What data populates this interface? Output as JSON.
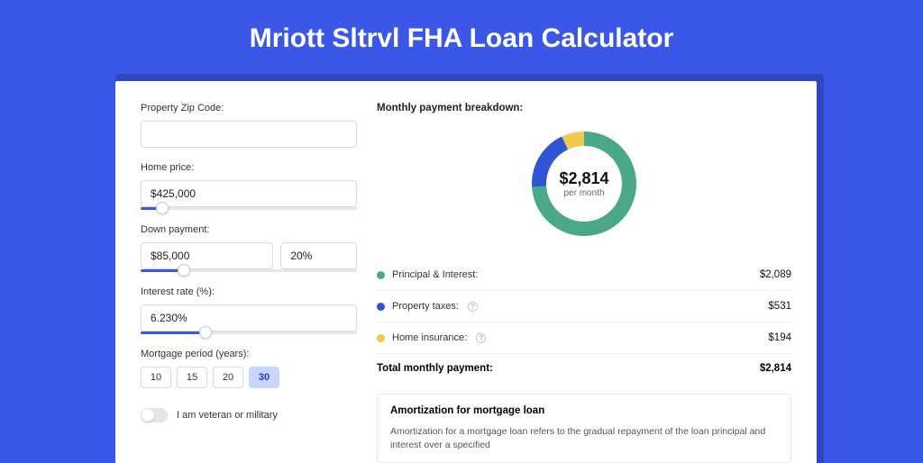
{
  "page": {
    "title": "Mriott Sltrvl FHA Loan Calculator",
    "background_color": "#3a57e8",
    "card_shadow_color": "#2e46c0"
  },
  "form": {
    "zip": {
      "label": "Property Zip Code:",
      "value": ""
    },
    "home_price": {
      "label": "Home price:",
      "value": "$425,000",
      "slider_pct": 10
    },
    "down_payment": {
      "label": "Down payment:",
      "value": "$85,000",
      "pct_value": "20%",
      "slider_pct": 20
    },
    "interest": {
      "label": "Interest rate (%):",
      "value": "6.230%",
      "slider_pct": 30
    },
    "period": {
      "label": "Mortgage period (years):",
      "options": [
        "10",
        "15",
        "20",
        "30"
      ],
      "selected": "30"
    },
    "veteran": {
      "label": "I am veteran or military",
      "checked": false
    }
  },
  "breakdown": {
    "title": "Monthly payment breakdown:",
    "center_amount": "$2,814",
    "center_sub": "per month",
    "donut": {
      "segments": [
        {
          "key": "principal",
          "pct": 74,
          "color": "#4aa789"
        },
        {
          "key": "taxes",
          "pct": 19,
          "color": "#2f55d4"
        },
        {
          "key": "insurance",
          "pct": 7,
          "color": "#f0c94e"
        }
      ],
      "thickness": 16
    },
    "items": [
      {
        "label": "Principal & Interest:",
        "value": "$2,089",
        "color": "#4aa789",
        "info": false
      },
      {
        "label": "Property taxes:",
        "value": "$531",
        "color": "#2f55d4",
        "info": true
      },
      {
        "label": "Home insurance:",
        "value": "$194",
        "color": "#f0c94e",
        "info": true
      }
    ],
    "total": {
      "label": "Total monthly payment:",
      "value": "$2,814"
    }
  },
  "amortization": {
    "title": "Amortization for mortgage loan",
    "text": "Amortization for a mortgage loan refers to the gradual repayment of the loan principal and interest over a specified"
  }
}
